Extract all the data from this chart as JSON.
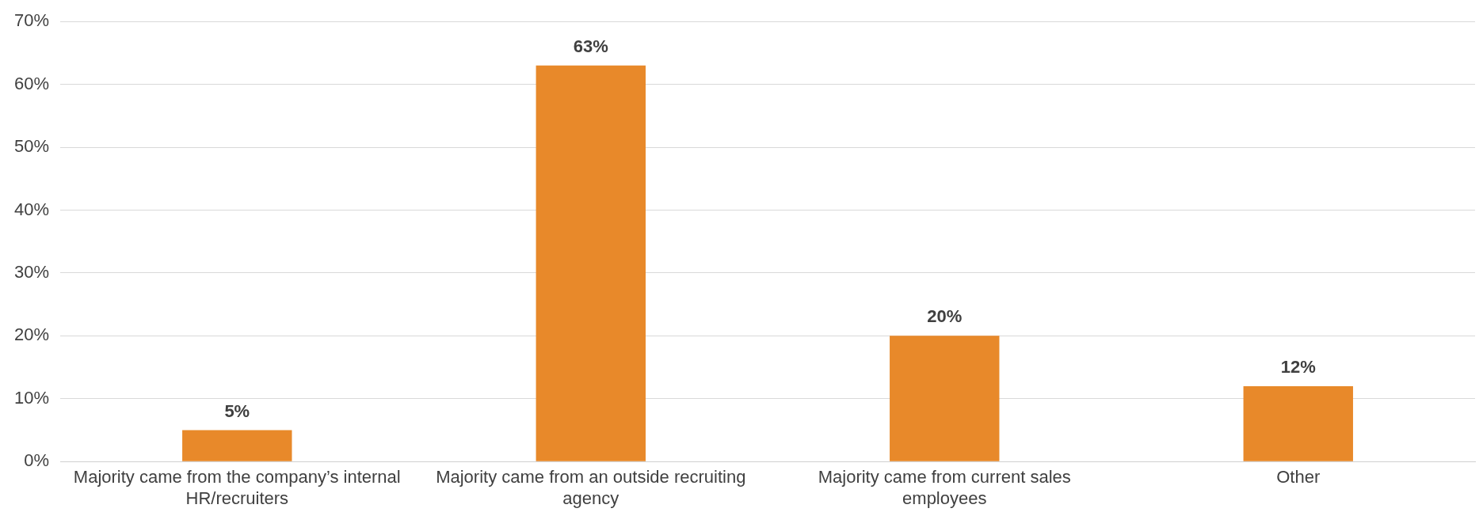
{
  "chart_data": {
    "type": "bar",
    "categories": [
      "Majority came from the company’s internal HR/recruiters",
      "Majority came from an outside recruiting agency",
      "Majority came from current sales employees",
      "Other"
    ],
    "values": [
      5,
      63,
      20,
      12
    ],
    "value_labels": [
      "5%",
      "63%",
      "20%",
      "12%"
    ],
    "color": "#e8892a",
    "ylim": [
      0,
      70
    ],
    "yticks": [
      {
        "value": 0,
        "label": "0%"
      },
      {
        "value": 10,
        "label": "10%"
      },
      {
        "value": 20,
        "label": "20%"
      },
      {
        "value": 30,
        "label": "30%"
      },
      {
        "value": 40,
        "label": "40%"
      },
      {
        "value": 50,
        "label": "50%"
      },
      {
        "value": 60,
        "label": "60%"
      },
      {
        "value": 70,
        "label": "70%"
      }
    ],
    "grid": "y",
    "legend": false
  }
}
